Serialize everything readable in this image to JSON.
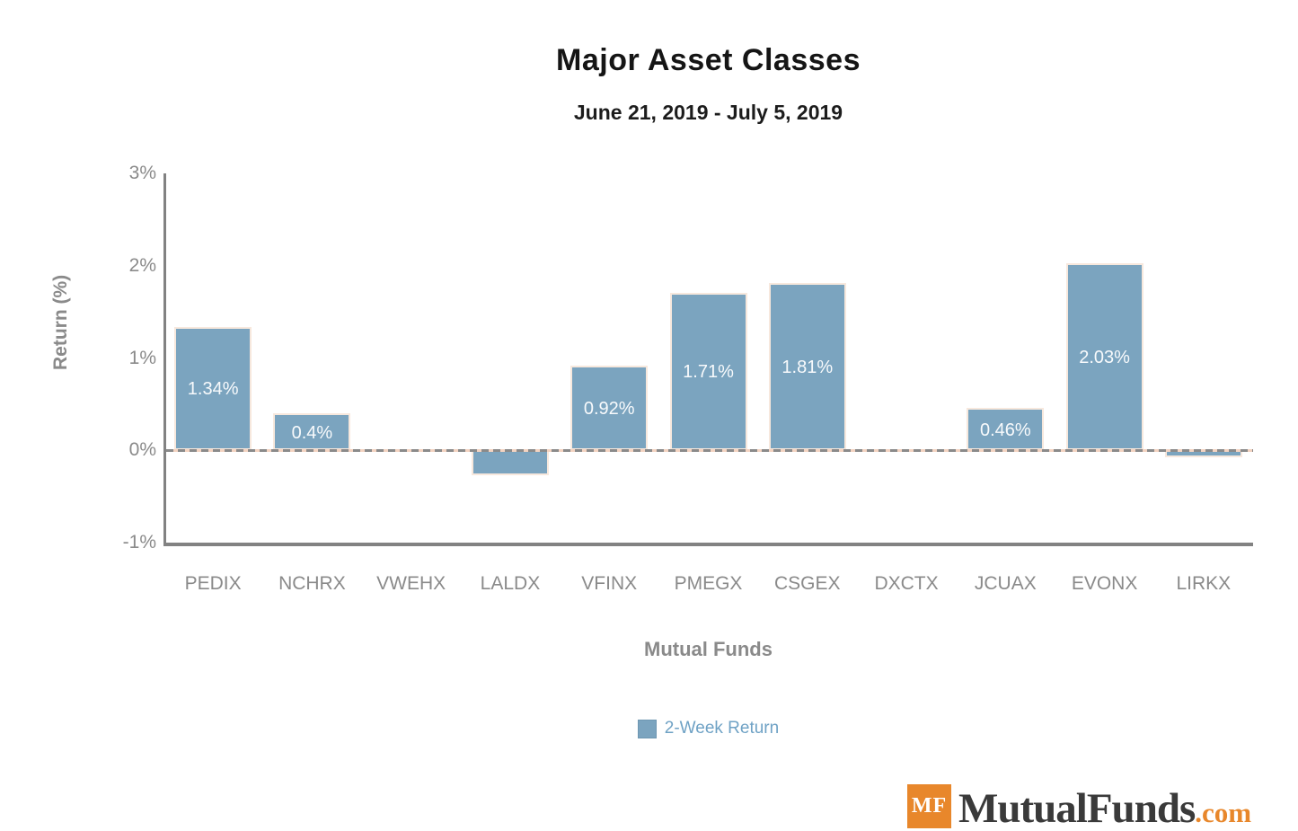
{
  "header": {
    "title": "Major Asset Classes",
    "subtitle": "June 21, 2019 - July 5, 2019"
  },
  "chart_data": {
    "type": "bar",
    "title": "Major Asset Classes",
    "subtitle": "June 21, 2019 - July 5, 2019",
    "xlabel": "Mutual Funds",
    "ylabel": "Return (%)",
    "categories": [
      "PEDIX",
      "NCHRX",
      "VWEHX",
      "LALDX",
      "VFINX",
      "PMEGX",
      "CSGEX",
      "DXCTX",
      "JCUAX",
      "EVONX",
      "LIRKX"
    ],
    "values": [
      1.34,
      0.4,
      0,
      -0.27,
      0.92,
      1.71,
      1.81,
      0,
      0.46,
      2.03,
      -0.08
    ],
    "bar_labels": [
      "1.34%",
      "0.4%",
      "",
      "",
      "0.92%",
      "1.71%",
      "1.81%",
      "",
      "0.46%",
      "2.03%",
      ""
    ],
    "ylim": [
      -1,
      3
    ],
    "yticks": [
      {
        "value": 3,
        "label": "3%"
      },
      {
        "value": 2,
        "label": "2%"
      },
      {
        "value": 1,
        "label": "1%"
      },
      {
        "value": 0,
        "label": "0%"
      },
      {
        "value": -1,
        "label": "-1%"
      }
    ],
    "grid": false,
    "zero_line": "dashed",
    "legend_position": "bottom",
    "legend": [
      {
        "label": "2-Week Return",
        "color": "#7ba4bf"
      }
    ],
    "colors": {
      "bar_fill": "#7ba4bf",
      "bar_border": "#f7e8dd",
      "axis": "#828282",
      "tick_text": "#8a8a8a",
      "zero_dash": "#8a8a8a",
      "zero_underlay": "#f3d3c1",
      "bar_value_text": "#ffffff",
      "legend_text": "#6fa2c5"
    }
  },
  "branding": {
    "badge": "MF",
    "name": "MutualFunds",
    "suffix": ".com",
    "orange": "#e8872b"
  }
}
